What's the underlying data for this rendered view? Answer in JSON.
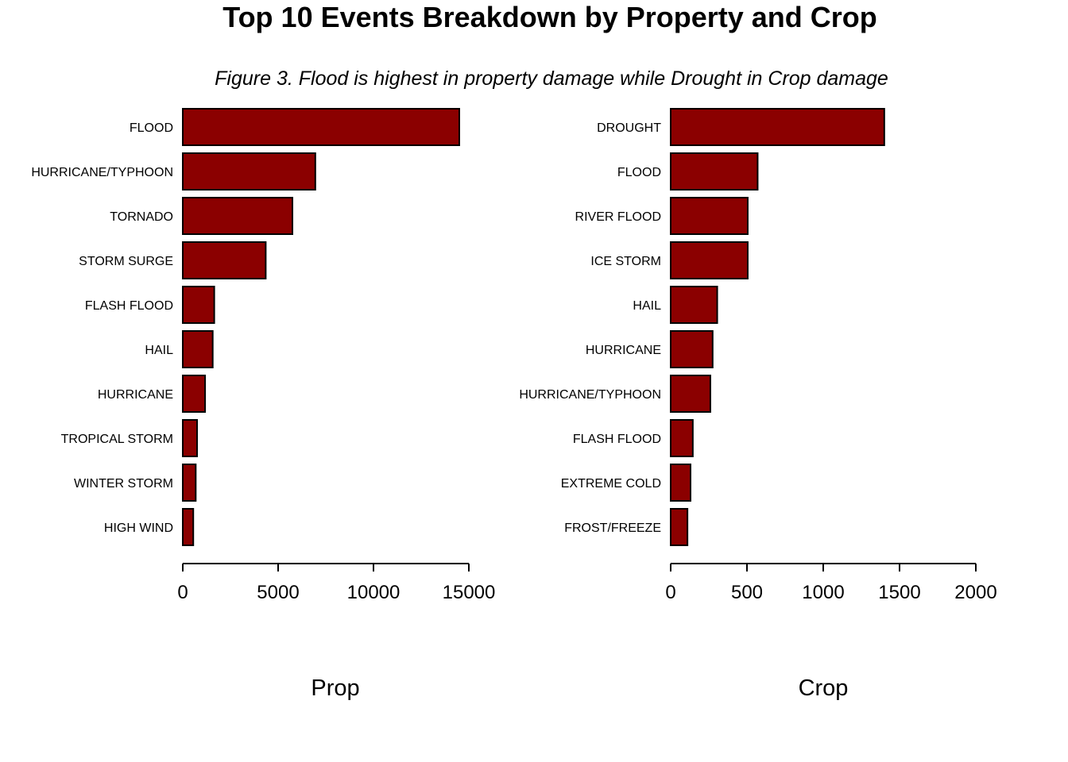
{
  "title": "Top 10 Events Breakdown by Property and Crop",
  "subtitle": "Figure 3. Flood is highest in property damage while Drought in Crop damage",
  "colors": {
    "bar_fill": "#8b0000",
    "bar_stroke": "#000000"
  },
  "chart_data": [
    {
      "type": "bar",
      "orientation": "horizontal",
      "xlabel": "Prop",
      "categories": [
        "FLOOD",
        "HURRICANE/TYPHOON",
        "TORNADO",
        "STORM SURGE",
        "FLASH FLOOD",
        "HAIL",
        "HURRICANE",
        "TROPICAL STORM",
        "WINTER STORM",
        "HIGH WIND"
      ],
      "values": [
        14500,
        6950,
        5750,
        4350,
        1650,
        1570,
        1170,
        750,
        680,
        550
      ],
      "xlim": [
        0,
        15000
      ],
      "ticks": [
        0,
        5000,
        10000,
        15000
      ],
      "tick_labels": [
        "0",
        "5000",
        "10000",
        "15000"
      ],
      "grid": false
    },
    {
      "type": "bar",
      "orientation": "horizontal",
      "xlabel": "Crop",
      "categories": [
        "DROUGHT",
        "FLOOD",
        "RIVER FLOOD",
        "ICE STORM",
        "HAIL",
        "HURRICANE",
        "HURRICANE/TYPHOON",
        "FLASH FLOOD",
        "EXTREME COLD",
        "FROST/FREEZE"
      ],
      "values": [
        1400,
        570,
        505,
        505,
        305,
        275,
        260,
        145,
        130,
        110
      ],
      "xlim": [
        0,
        2000
      ],
      "ticks": [
        0,
        500,
        1000,
        1500,
        2000
      ],
      "tick_labels": [
        "0",
        "500",
        "1000",
        "1500",
        "2000"
      ],
      "grid": false
    }
  ]
}
